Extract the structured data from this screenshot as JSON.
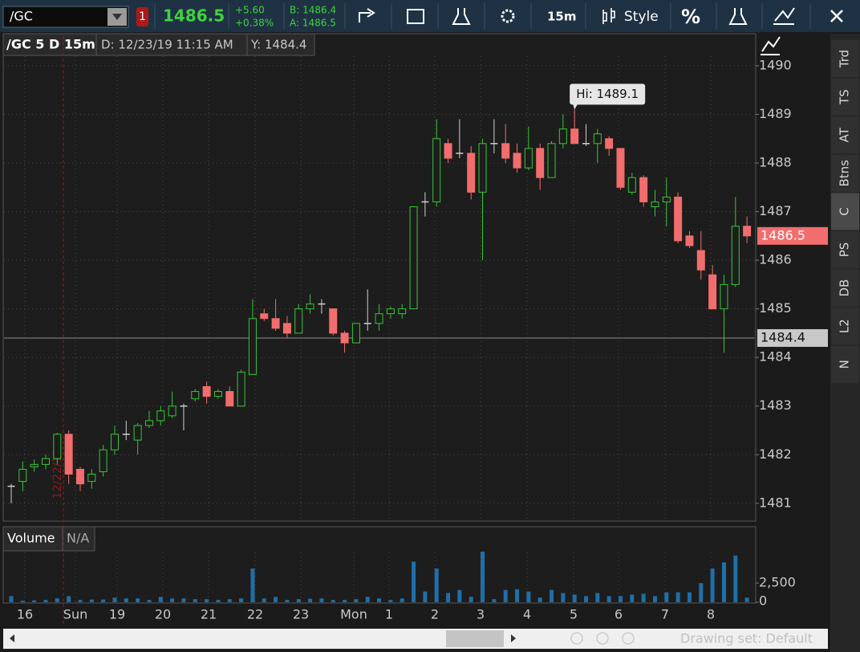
{
  "toolbar": {
    "symbol": "/GC",
    "alert_count": "1",
    "last": "1486.5",
    "change": "+5.60",
    "change_pct": "+0.38%",
    "bid": "B: 1486.4",
    "ask": "A: 1486.5",
    "interval": "15m",
    "style": "Style",
    "percent": "%"
  },
  "chart_header": {
    "symbol_label": "/GC 5 D 15m",
    "date": "D: 12/23/19 11:15 AM",
    "y": "Y: 1484.4"
  },
  "chart_data": [
    {
      "type": "candlestick",
      "open": [
        1481.35,
        1481.45,
        1481.75,
        1481.8,
        1481.92,
        1482.42,
        1481.7,
        1481.45,
        1481.65,
        1482.1,
        1482.42,
        1482.3,
        1482.6,
        1482.7,
        1482.8,
        1483.0,
        1483.15,
        1483.4,
        1483.2,
        1483.3,
        1483.0,
        1483.65,
        1484.9,
        1484.8,
        1484.7,
        1484.5,
        1485.0,
        1485.1,
        1485.0,
        1484.5,
        1484.3,
        1484.7,
        1484.7,
        1484.9,
        1484.9,
        1485.0,
        1487.2,
        1487.2,
        1488.4,
        1488.2,
        1488.2,
        1487.4,
        1488.4,
        1488.4,
        1488.2,
        1487.9,
        1488.3,
        1487.7,
        1488.4,
        1488.7,
        1488.4,
        1488.4,
        1488.5,
        1488.3,
        1487.4,
        1487.7,
        1487.1,
        1487.2,
        1487.3,
        1486.5,
        1486.2,
        1485.7,
        1485.0,
        1485.5,
        1486.7
      ],
      "high": [
        1481.4,
        1481.86,
        1481.9,
        1482.0,
        1482.45,
        1482.5,
        1481.75,
        1481.7,
        1482.2,
        1482.6,
        1482.7,
        1482.65,
        1482.9,
        1483.0,
        1483.3,
        1483.05,
        1483.35,
        1483.5,
        1483.35,
        1483.4,
        1483.75,
        1485.2,
        1485.0,
        1485.2,
        1484.85,
        1485.1,
        1485.3,
        1485.2,
        1485.0,
        1484.55,
        1484.7,
        1485.4,
        1485.1,
        1485.05,
        1485.1,
        1487.1,
        1487.4,
        1488.9,
        1488.5,
        1488.9,
        1488.35,
        1488.5,
        1488.9,
        1488.8,
        1488.4,
        1488.75,
        1488.4,
        1488.45,
        1489.0,
        1489.1,
        1488.8,
        1488.7,
        1488.55,
        1488.3,
        1487.8,
        1487.75,
        1487.45,
        1487.7,
        1487.4,
        1486.6,
        1486.6,
        1485.9,
        1485.7,
        1487.3,
        1486.9
      ],
      "low": [
        1481.0,
        1481.25,
        1481.65,
        1481.7,
        1481.8,
        1481.4,
        1481.25,
        1481.3,
        1481.55,
        1482.0,
        1482.3,
        1482.0,
        1482.55,
        1482.6,
        1482.75,
        1482.5,
        1483.1,
        1483.05,
        1483.15,
        1483.0,
        1483.0,
        1483.65,
        1484.75,
        1484.55,
        1484.4,
        1484.5,
        1484.9,
        1484.9,
        1484.45,
        1484.1,
        1484.3,
        1484.55,
        1484.55,
        1484.8,
        1484.8,
        1485.0,
        1486.9,
        1487.1,
        1488.0,
        1488.1,
        1487.25,
        1486.0,
        1488.2,
        1488.0,
        1487.8,
        1487.85,
        1487.45,
        1487.7,
        1488.3,
        1488.4,
        1488.35,
        1488.0,
        1488.15,
        1487.45,
        1487.35,
        1487.1,
        1486.9,
        1486.7,
        1486.35,
        1486.25,
        1485.6,
        1485.0,
        1484.1,
        1485.45,
        1486.35
      ],
      "close": [
        1481.35,
        1481.7,
        1481.8,
        1481.92,
        1482.42,
        1481.6,
        1481.4,
        1481.6,
        1482.1,
        1482.42,
        1482.42,
        1482.6,
        1482.7,
        1482.9,
        1483.0,
        1483.0,
        1483.3,
        1483.2,
        1483.3,
        1483.0,
        1483.7,
        1484.8,
        1484.8,
        1484.6,
        1484.5,
        1485.0,
        1485.1,
        1485.1,
        1484.5,
        1484.3,
        1484.7,
        1484.7,
        1484.9,
        1485.0,
        1485.0,
        1487.1,
        1487.2,
        1488.5,
        1488.1,
        1488.2,
        1487.4,
        1488.4,
        1488.4,
        1488.1,
        1487.9,
        1488.3,
        1487.7,
        1488.4,
        1488.7,
        1488.4,
        1488.4,
        1488.6,
        1488.3,
        1487.5,
        1487.7,
        1487.2,
        1487.2,
        1487.3,
        1486.4,
        1486.3,
        1485.8,
        1485.0,
        1485.5,
        1486.7,
        1486.5
      ],
      "up_color": "#34c834",
      "down_color": "#f26d6d",
      "flat_color": "#d0d0d0",
      "ylim": [
        1480.65,
        1490.61
      ],
      "yticks": [
        1481,
        1482,
        1483,
        1484,
        1485,
        1486,
        1487,
        1488,
        1489,
        1490
      ],
      "grid": true,
      "xtick_labels": [
        "16",
        "Sun",
        "19",
        "20",
        "21",
        "22",
        "23",
        "Mon",
        "1",
        "2",
        "3",
        "4",
        "5",
        "6",
        "7",
        "8"
      ],
      "high_label": "Hi: 1489.1",
      "last_price": 1486.5,
      "crosshair_value": 1484.4,
      "marker_line_label": "12/22/19"
    },
    {
      "type": "bar",
      "title": "Volume",
      "subtitle": "N/A",
      "color": "#1f6fa8",
      "values": [
        800,
        200,
        250,
        300,
        500,
        800,
        300,
        350,
        350,
        600,
        500,
        500,
        300,
        700,
        500,
        500,
        400,
        400,
        300,
        400,
        500,
        4400,
        500,
        700,
        300,
        400,
        450,
        500,
        300,
        300,
        400,
        700,
        500,
        300,
        500,
        5300,
        1400,
        4400,
        1200,
        1600,
        700,
        6600,
        400,
        1600,
        1700,
        1400,
        600,
        1600,
        1200,
        1000,
        800,
        1200,
        800,
        800,
        1000,
        1100,
        800,
        1300,
        1300,
        1300,
        2500,
        4400,
        5200,
        6100,
        600
      ],
      "ylim": [
        0,
        6500
      ],
      "yticks": [
        0,
        {
          "value": 2500,
          "label": "2,500"
        }
      ]
    }
  ],
  "sidebar_tabs": [
    "Trd",
    "TS",
    "AT",
    "Btns",
    "C",
    "PS",
    "DB",
    "L2",
    "N"
  ],
  "footer": {
    "drawing_set": "Drawing set: Default"
  }
}
